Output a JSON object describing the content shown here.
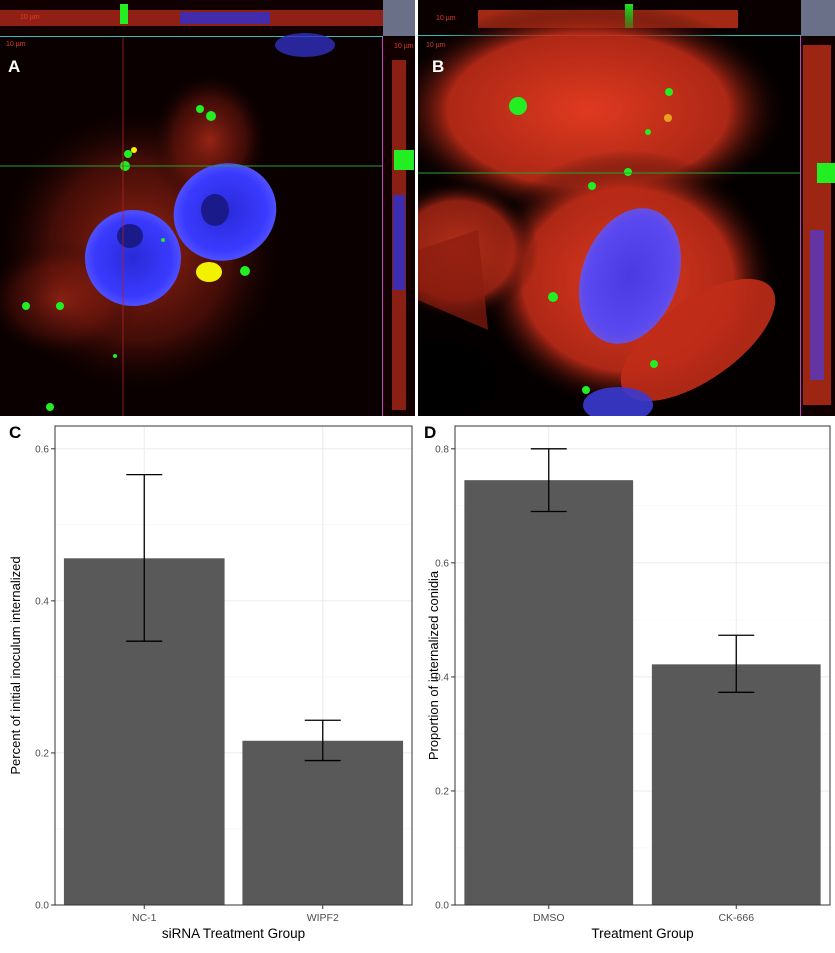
{
  "panels": {
    "a": {
      "label": "A",
      "scale_top": "10 µm",
      "scale_main": "10 µm",
      "scale_side": "10 µm"
    },
    "b": {
      "label": "B",
      "scale_top": "10 µm",
      "scale_main": "10 µm"
    },
    "c": {
      "label": "C"
    },
    "d": {
      "label": "D"
    }
  },
  "colors": {
    "bar": "#595959",
    "error": "#000000",
    "grid": "#ebebeb",
    "panel_border": "#333333",
    "membrane": "#e8321c",
    "nucleus": "#3a3aff",
    "conidia": "#22ee22",
    "colocalized": "#f2f200"
  },
  "chart_data": [
    {
      "type": "bar",
      "categories": [
        "NC-1",
        "WIPF2"
      ],
      "values": [
        0.456,
        0.216
      ],
      "error_low": [
        0.347,
        0.19
      ],
      "error_high": [
        0.566,
        0.243
      ],
      "xlabel": "siRNA Treatment Group",
      "ylabel": "Percent of initial inoculum internalized",
      "ylim": [
        0,
        0.63
      ],
      "yticks": [
        0.0,
        0.2,
        0.4,
        0.6
      ],
      "ytick_labels": [
        "0.0",
        "0.2",
        "0.4",
        "0.6"
      ],
      "grid": true
    },
    {
      "type": "bar",
      "categories": [
        "DMSO",
        "CK-666"
      ],
      "values": [
        0.745,
        0.422
      ],
      "error_low": [
        0.69,
        0.373
      ],
      "error_high": [
        0.8,
        0.473
      ],
      "xlabel": "Treatment Group",
      "ylabel": "Proportion of internalized conidia",
      "ylim": [
        0,
        0.84
      ],
      "yticks": [
        0.0,
        0.2,
        0.4,
        0.6,
        0.8
      ],
      "ytick_labels": [
        "0.0",
        "0.2",
        "0.4",
        "0.6",
        "0.8"
      ],
      "grid": true
    }
  ]
}
